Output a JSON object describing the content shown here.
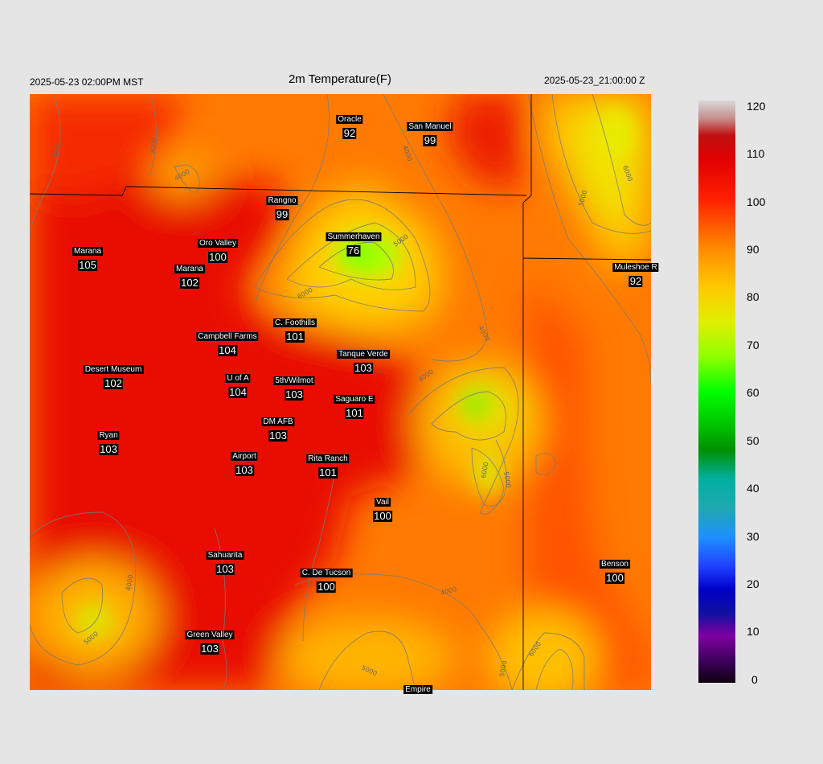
{
  "header": {
    "title": "2m Temperature(F)",
    "local_time": "2025-05-23 02:00PM MST",
    "utc_time": "2025-05-23_21:00:00 Z"
  },
  "colorbar": {
    "labels": [
      "120",
      "110",
      "100",
      "90",
      "80",
      "70",
      "60",
      "50",
      "40",
      "30",
      "20",
      "10",
      "0"
    ]
  },
  "contour_labels": [
    "3000",
    "3000",
    "4000",
    "4000",
    "4000",
    "4000",
    "4000",
    "4000",
    "5000",
    "5000",
    "5000",
    "5000",
    "5000",
    "5000",
    "6000",
    "6000",
    "6000",
    "6000"
  ],
  "stations": [
    {
      "name": "Oracle",
      "value": "92"
    },
    {
      "name": "San Manuel",
      "value": "99"
    },
    {
      "name": "Rangno",
      "value": "99"
    },
    {
      "name": "Summerhaven",
      "value": "76"
    },
    {
      "name": "Marana",
      "value": "105"
    },
    {
      "name": "Oro Valley",
      "value": "100"
    },
    {
      "name": "Marana",
      "value": "102"
    },
    {
      "name": "Muleshoe R",
      "value": "92"
    },
    {
      "name": "C. Foothills",
      "value": "101"
    },
    {
      "name": "Campbell Farms",
      "value": "104"
    },
    {
      "name": "Tanque Verde",
      "value": "103"
    },
    {
      "name": "Desert Museum",
      "value": "102"
    },
    {
      "name": "U of A",
      "value": "104"
    },
    {
      "name": "5th/Wilmot",
      "value": "103"
    },
    {
      "name": "Saguaro E",
      "value": "101"
    },
    {
      "name": "DM AFB",
      "value": "103"
    },
    {
      "name": "Ryan",
      "value": "103"
    },
    {
      "name": "Airport",
      "value": "103"
    },
    {
      "name": "Rita Ranch",
      "value": "101"
    },
    {
      "name": "Vail",
      "value": "100"
    },
    {
      "name": "Sahuarita",
      "value": "103"
    },
    {
      "name": "C. De Tucson",
      "value": "100"
    },
    {
      "name": "Benson",
      "value": "100"
    },
    {
      "name": "Green Valley",
      "value": "103"
    },
    {
      "name": "Empire",
      "value": ""
    }
  ]
}
